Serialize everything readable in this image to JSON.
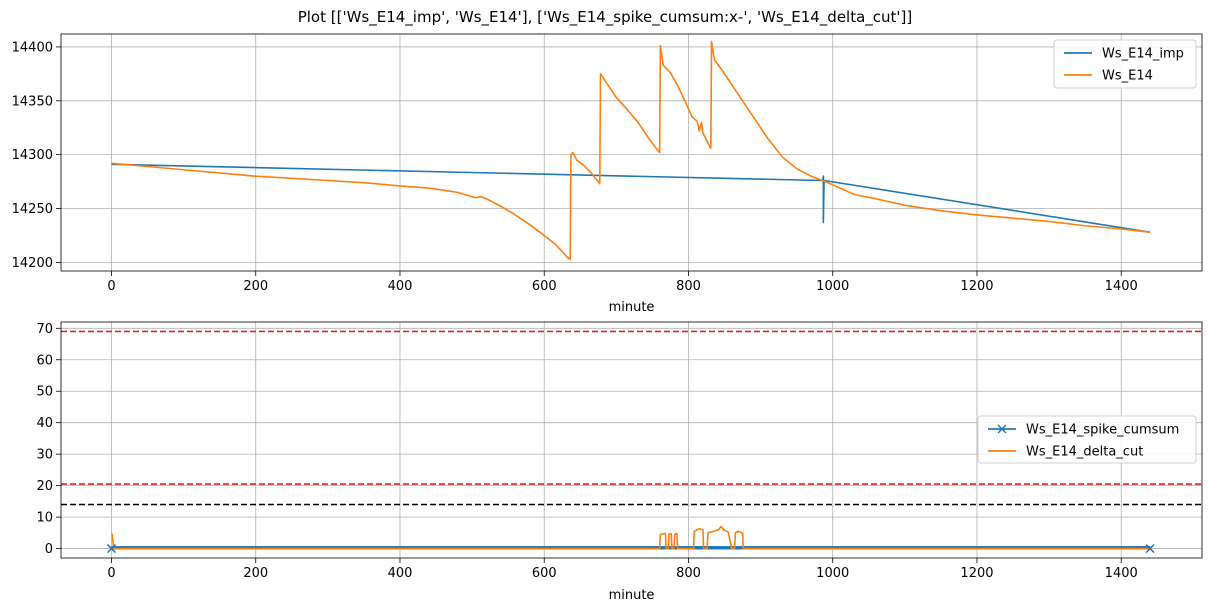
{
  "figure_title": "Plot [['Ws_E14_imp', 'Ws_E14'], ['Ws_E14_spike_cumsum:x-', 'Ws_E14_delta_cut']]",
  "colors": {
    "blue": "#1f77b4",
    "orange": "#ff7f0e",
    "red": "#d62728",
    "black": "#000000",
    "grid": "#b0b0b0"
  },
  "chart_data": [
    {
      "type": "line",
      "xlabel": "minute",
      "ylabel": "",
      "xlim": [
        -70,
        1512
      ],
      "ylim": [
        14192,
        14412
      ],
      "xticks": [
        0,
        200,
        400,
        600,
        800,
        1000,
        1200,
        1400
      ],
      "yticks": [
        14200,
        14250,
        14300,
        14350,
        14400
      ],
      "grid": true,
      "legend_position": "upper right",
      "series": [
        {
          "name": "Ws_E14_imp",
          "color": "#1f77b4",
          "points": [
            [
              0,
              14291
            ],
            [
              986,
              14276
            ],
            [
              987,
              14280
            ],
            [
              987,
              14237
            ],
            [
              988,
              14276
            ],
            [
              1440,
              14228
            ]
          ]
        },
        {
          "name": "Ws_E14",
          "color": "#ff7f0e",
          "points": [
            [
              0,
              14292
            ],
            [
              50,
              14289
            ],
            [
              100,
              14286
            ],
            [
              150,
              14283
            ],
            [
              200,
              14280
            ],
            [
              250,
              14278
            ],
            [
              300,
              14276
            ],
            [
              350,
              14274
            ],
            [
              400,
              14271
            ],
            [
              440,
              14269
            ],
            [
              480,
              14265
            ],
            [
              505,
              14260
            ],
            [
              512,
              14261
            ],
            [
              520,
              14259
            ],
            [
              540,
              14252
            ],
            [
              560,
              14244
            ],
            [
              580,
              14235
            ],
            [
              600,
              14225
            ],
            [
              615,
              14217
            ],
            [
              625,
              14210
            ],
            [
              633,
              14204
            ],
            [
              636,
              14203
            ],
            [
              637,
              14300
            ],
            [
              640,
              14302
            ],
            [
              645,
              14295
            ],
            [
              655,
              14290
            ],
            [
              665,
              14283
            ],
            [
              675,
              14275
            ],
            [
              677,
              14273
            ],
            [
              678,
              14375
            ],
            [
              685,
              14368
            ],
            [
              700,
              14353
            ],
            [
              715,
              14342
            ],
            [
              730,
              14330
            ],
            [
              745,
              14315
            ],
            [
              755,
              14306
            ],
            [
              760,
              14302
            ],
            [
              761,
              14401
            ],
            [
              765,
              14383
            ],
            [
              775,
              14376
            ],
            [
              785,
              14364
            ],
            [
              795,
              14350
            ],
            [
              805,
              14335
            ],
            [
              812,
              14331
            ],
            [
              815,
              14322
            ],
            [
              818,
              14330
            ],
            [
              820,
              14320
            ],
            [
              830,
              14307
            ],
            [
              831,
              14306
            ],
            [
              832,
              14405
            ],
            [
              836,
              14388
            ],
            [
              845,
              14380
            ],
            [
              855,
              14370
            ],
            [
              870,
              14355
            ],
            [
              890,
              14335
            ],
            [
              910,
              14315
            ],
            [
              930,
              14298
            ],
            [
              950,
              14287
            ],
            [
              970,
              14280
            ],
            [
              990,
              14275
            ],
            [
              1000,
              14272
            ],
            [
              1030,
              14263
            ],
            [
              1060,
              14259
            ],
            [
              1100,
              14253
            ],
            [
              1150,
              14248
            ],
            [
              1200,
              14244
            ],
            [
              1250,
              14241
            ],
            [
              1300,
              14238
            ],
            [
              1350,
              14234
            ],
            [
              1400,
              14231
            ],
            [
              1440,
              14228
            ]
          ]
        }
      ]
    },
    {
      "type": "line",
      "xlabel": "minute",
      "ylabel": "",
      "xlim": [
        -70,
        1512
      ],
      "ylim": [
        -3,
        72
      ],
      "xticks": [
        0,
        200,
        400,
        600,
        800,
        1000,
        1200,
        1400
      ],
      "yticks": [
        0,
        10,
        20,
        30,
        40,
        50,
        60,
        70
      ],
      "grid": true,
      "legend_position": "center right",
      "hlines": [
        {
          "y": 69,
          "color": "#d62728",
          "style": "dashed"
        },
        {
          "y": 20.5,
          "color": "#d62728",
          "style": "dashed"
        },
        {
          "y": 14,
          "color": "#000000",
          "style": "dashed"
        }
      ],
      "series": [
        {
          "name": "Ws_E14_spike_cumsum",
          "color": "#1f77b4",
          "marker": "x",
          "style": "x-",
          "x_range": [
            0,
            1440
          ],
          "y_band": [
            -0.3,
            0.8
          ]
        },
        {
          "name": "Ws_E14_delta_cut",
          "color": "#ff7f0e",
          "points": [
            [
              0,
              4.5
            ],
            [
              1,
              4.5
            ],
            [
              3,
              0
            ],
            [
              760,
              0
            ],
            [
              761,
              4.5
            ],
            [
              768,
              4.8
            ],
            [
              769,
              0
            ],
            [
              772,
              0
            ],
            [
              773,
              4.5
            ],
            [
              776,
              4.8
            ],
            [
              777,
              0
            ],
            [
              780,
              0
            ],
            [
              781,
              4.5
            ],
            [
              784,
              4.8
            ],
            [
              785,
              0
            ],
            [
              807,
              0
            ],
            [
              808,
              5.5
            ],
            [
              815,
              6.3
            ],
            [
              820,
              6
            ],
            [
              821,
              0
            ],
            [
              826,
              0
            ],
            [
              827,
              5
            ],
            [
              835,
              5.5
            ],
            [
              842,
              6
            ],
            [
              845,
              7
            ],
            [
              850,
              5.8
            ],
            [
              855,
              5.3
            ],
            [
              860,
              0
            ],
            [
              864,
              0
            ],
            [
              865,
              5
            ],
            [
              870,
              5.5
            ],
            [
              875,
              4.8
            ],
            [
              876,
              0
            ],
            [
              1440,
              0
            ]
          ]
        }
      ]
    }
  ]
}
